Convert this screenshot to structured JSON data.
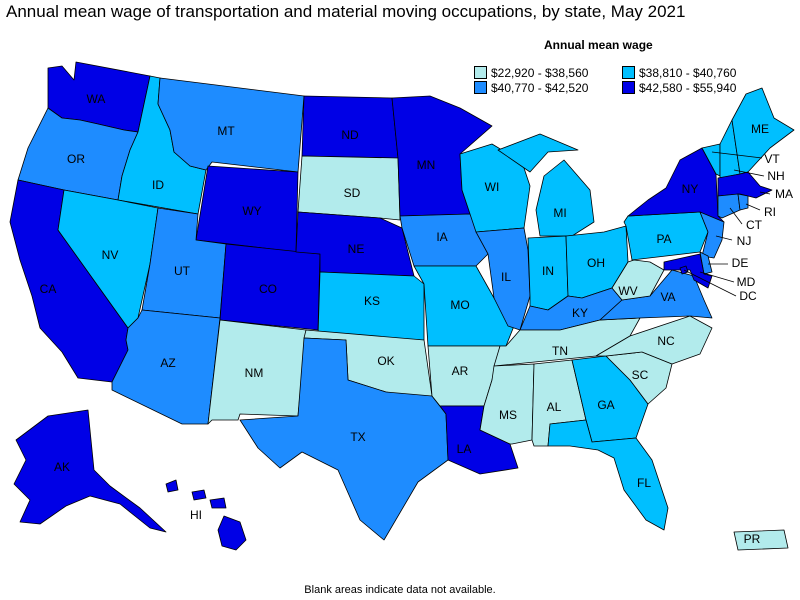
{
  "title": "Annual mean wage of transportation and material moving occupations, by state, May 2021",
  "legend": {
    "title": "Annual mean wage",
    "items": [
      {
        "label": "$22,920 - $38,560",
        "color": "#b2ebec"
      },
      {
        "label": "$38,810 - $40,760",
        "color": "#00bfff"
      },
      {
        "label": "$40,770 - $42,520",
        "color": "#1e8cff"
      },
      {
        "label": "$42,580 - $55,940",
        "color": "#0000e6"
      }
    ]
  },
  "footnote": "Blank areas indicate data not available.",
  "states": [
    {
      "abbr": "WA",
      "tier": 3
    },
    {
      "abbr": "OR",
      "tier": 2
    },
    {
      "abbr": "CA",
      "tier": 3
    },
    {
      "abbr": "ID",
      "tier": 1
    },
    {
      "abbr": "NV",
      "tier": 1
    },
    {
      "abbr": "MT",
      "tier": 2
    },
    {
      "abbr": "WY",
      "tier": 3
    },
    {
      "abbr": "UT",
      "tier": 2
    },
    {
      "abbr": "AZ",
      "tier": 2
    },
    {
      "abbr": "CO",
      "tier": 3
    },
    {
      "abbr": "NM",
      "tier": 0
    },
    {
      "abbr": "ND",
      "tier": 3
    },
    {
      "abbr": "SD",
      "tier": 0
    },
    {
      "abbr": "NE",
      "tier": 3
    },
    {
      "abbr": "KS",
      "tier": 1
    },
    {
      "abbr": "OK",
      "tier": 0
    },
    {
      "abbr": "TX",
      "tier": 2
    },
    {
      "abbr": "MN",
      "tier": 3
    },
    {
      "abbr": "IA",
      "tier": 2
    },
    {
      "abbr": "MO",
      "tier": 1
    },
    {
      "abbr": "AR",
      "tier": 0
    },
    {
      "abbr": "LA",
      "tier": 3
    },
    {
      "abbr": "WI",
      "tier": 1
    },
    {
      "abbr": "IL",
      "tier": 2
    },
    {
      "abbr": "MI",
      "tier": 1
    },
    {
      "abbr": "IN",
      "tier": 1
    },
    {
      "abbr": "OH",
      "tier": 1
    },
    {
      "abbr": "KY",
      "tier": 2
    },
    {
      "abbr": "TN",
      "tier": 0
    },
    {
      "abbr": "MS",
      "tier": 0
    },
    {
      "abbr": "AL",
      "tier": 0
    },
    {
      "abbr": "GA",
      "tier": 1
    },
    {
      "abbr": "FL",
      "tier": 1
    },
    {
      "abbr": "SC",
      "tier": 0
    },
    {
      "abbr": "NC",
      "tier": 0
    },
    {
      "abbr": "VA",
      "tier": 2
    },
    {
      "abbr": "WV",
      "tier": 0
    },
    {
      "abbr": "PA",
      "tier": 1
    },
    {
      "abbr": "NY",
      "tier": 3
    },
    {
      "abbr": "VT",
      "tier": 1
    },
    {
      "abbr": "NH",
      "tier": 1
    },
    {
      "abbr": "ME",
      "tier": 1
    },
    {
      "abbr": "MA",
      "tier": 3
    },
    {
      "abbr": "RI",
      "tier": 2
    },
    {
      "abbr": "CT",
      "tier": 2
    },
    {
      "abbr": "NJ",
      "tier": 2
    },
    {
      "abbr": "DE",
      "tier": 2
    },
    {
      "abbr": "MD",
      "tier": 3
    },
    {
      "abbr": "DC",
      "tier": 3
    },
    {
      "abbr": "AK",
      "tier": 3
    },
    {
      "abbr": "HI",
      "tier": 3
    },
    {
      "abbr": "PR",
      "tier": 0
    }
  ]
}
